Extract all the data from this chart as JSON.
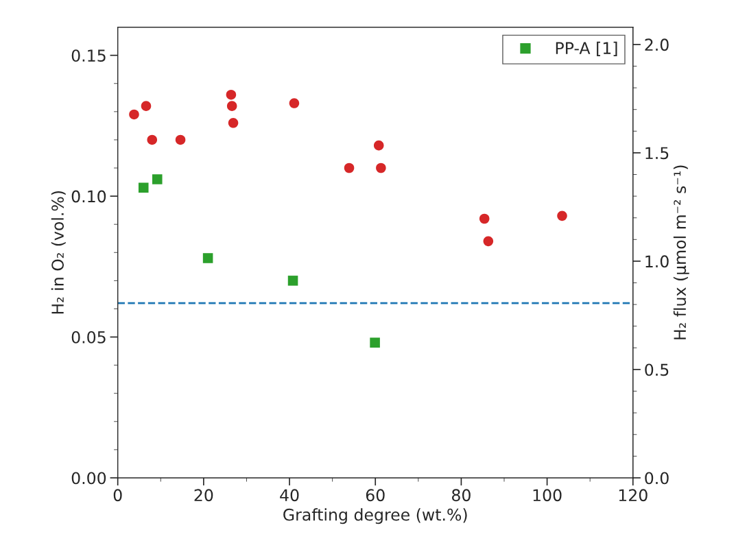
{
  "chart_data": {
    "type": "scatter",
    "xlabel": "Grafting degree (wt.%)",
    "ylabel": "H₂ in O₂ (vol.%)",
    "y2label": "H₂ flux (µmol m⁻² s⁻¹)",
    "xlim": [
      0,
      120
    ],
    "xticks": [
      0,
      20,
      40,
      60,
      80,
      100,
      120,
      {
        "value": 10,
        "label": null
      },
      {
        "value": 30,
        "label": null
      },
      {
        "value": 50,
        "label": null
      },
      {
        "value": 70,
        "label": null
      },
      {
        "value": 90,
        "label": null
      },
      {
        "value": 110,
        "label": null
      }
    ],
    "ylim": [
      0,
      0.16
    ],
    "yticks": [
      {
        "value": 0,
        "label": "0.00"
      },
      0.05,
      {
        "value": 0.1,
        "label": "0.10"
      },
      0.15,
      {
        "value": 0.01,
        "label": null
      },
      {
        "value": 0.02,
        "label": null
      },
      {
        "value": 0.03,
        "label": null
      },
      {
        "value": 0.04,
        "label": null
      },
      {
        "value": 0.06,
        "label": null
      },
      {
        "value": 0.07,
        "label": null
      },
      {
        "value": 0.08,
        "label": null
      },
      {
        "value": 0.09,
        "label": null
      },
      {
        "value": 0.11,
        "label": null
      },
      {
        "value": 0.12,
        "label": null
      },
      {
        "value": 0.13,
        "label": null
      },
      {
        "value": 0.14,
        "label": null
      }
    ],
    "y2lim": [
      0,
      2.08
    ],
    "y2ticks": [
      {
        "value": 0,
        "label": "0.0"
      },
      0.5,
      {
        "value": 1,
        "label": "1.0"
      },
      1.5,
      {
        "value": 2,
        "label": "2.0"
      },
      {
        "value": 0.1,
        "label": null
      },
      {
        "value": 0.2,
        "label": null
      },
      {
        "value": 0.3,
        "label": null
      },
      {
        "value": 0.4,
        "label": null
      },
      {
        "value": 0.6,
        "label": null
      },
      {
        "value": 0.7,
        "label": null
      },
      {
        "value": 0.8,
        "label": null
      },
      {
        "value": 0.9,
        "label": null
      },
      {
        "value": 1.1,
        "label": null
      },
      {
        "value": 1.2,
        "label": null
      },
      {
        "value": 1.3,
        "label": null
      },
      {
        "value": 1.4,
        "label": null
      },
      {
        "value": 1.6,
        "label": null
      },
      {
        "value": 1.7,
        "label": null
      },
      {
        "value": 1.8,
        "label": null
      },
      {
        "value": 1.9,
        "label": null
      }
    ],
    "legend": "top right",
    "grid": false,
    "series": [
      {
        "color": "#d62728",
        "marker": "circle",
        "x": [
          3.8,
          6.6,
          8.0,
          14.6,
          26.4,
          26.6,
          26.9,
          41.1,
          53.9,
          60.8,
          61.3,
          85.4,
          86.3,
          103.5
        ],
        "values": [
          0.129,
          0.132,
          0.12,
          0.12,
          0.136,
          0.132,
          0.126,
          0.133,
          0.11,
          0.118,
          0.11,
          0.092,
          0.084,
          0.093
        ]
      },
      {
        "name": "PP-A [1]",
        "color": "#2ca02c",
        "marker": "square",
        "x": [
          6.0,
          9.2,
          21.0,
          40.8,
          59.9
        ],
        "values": [
          0.103,
          0.106,
          0.078,
          0.07,
          0.048
        ]
      }
    ],
    "ref_lines": [
      {
        "axis": "y",
        "value": 0.062,
        "color": "#1f77b4",
        "line_style": "dashed"
      }
    ]
  }
}
